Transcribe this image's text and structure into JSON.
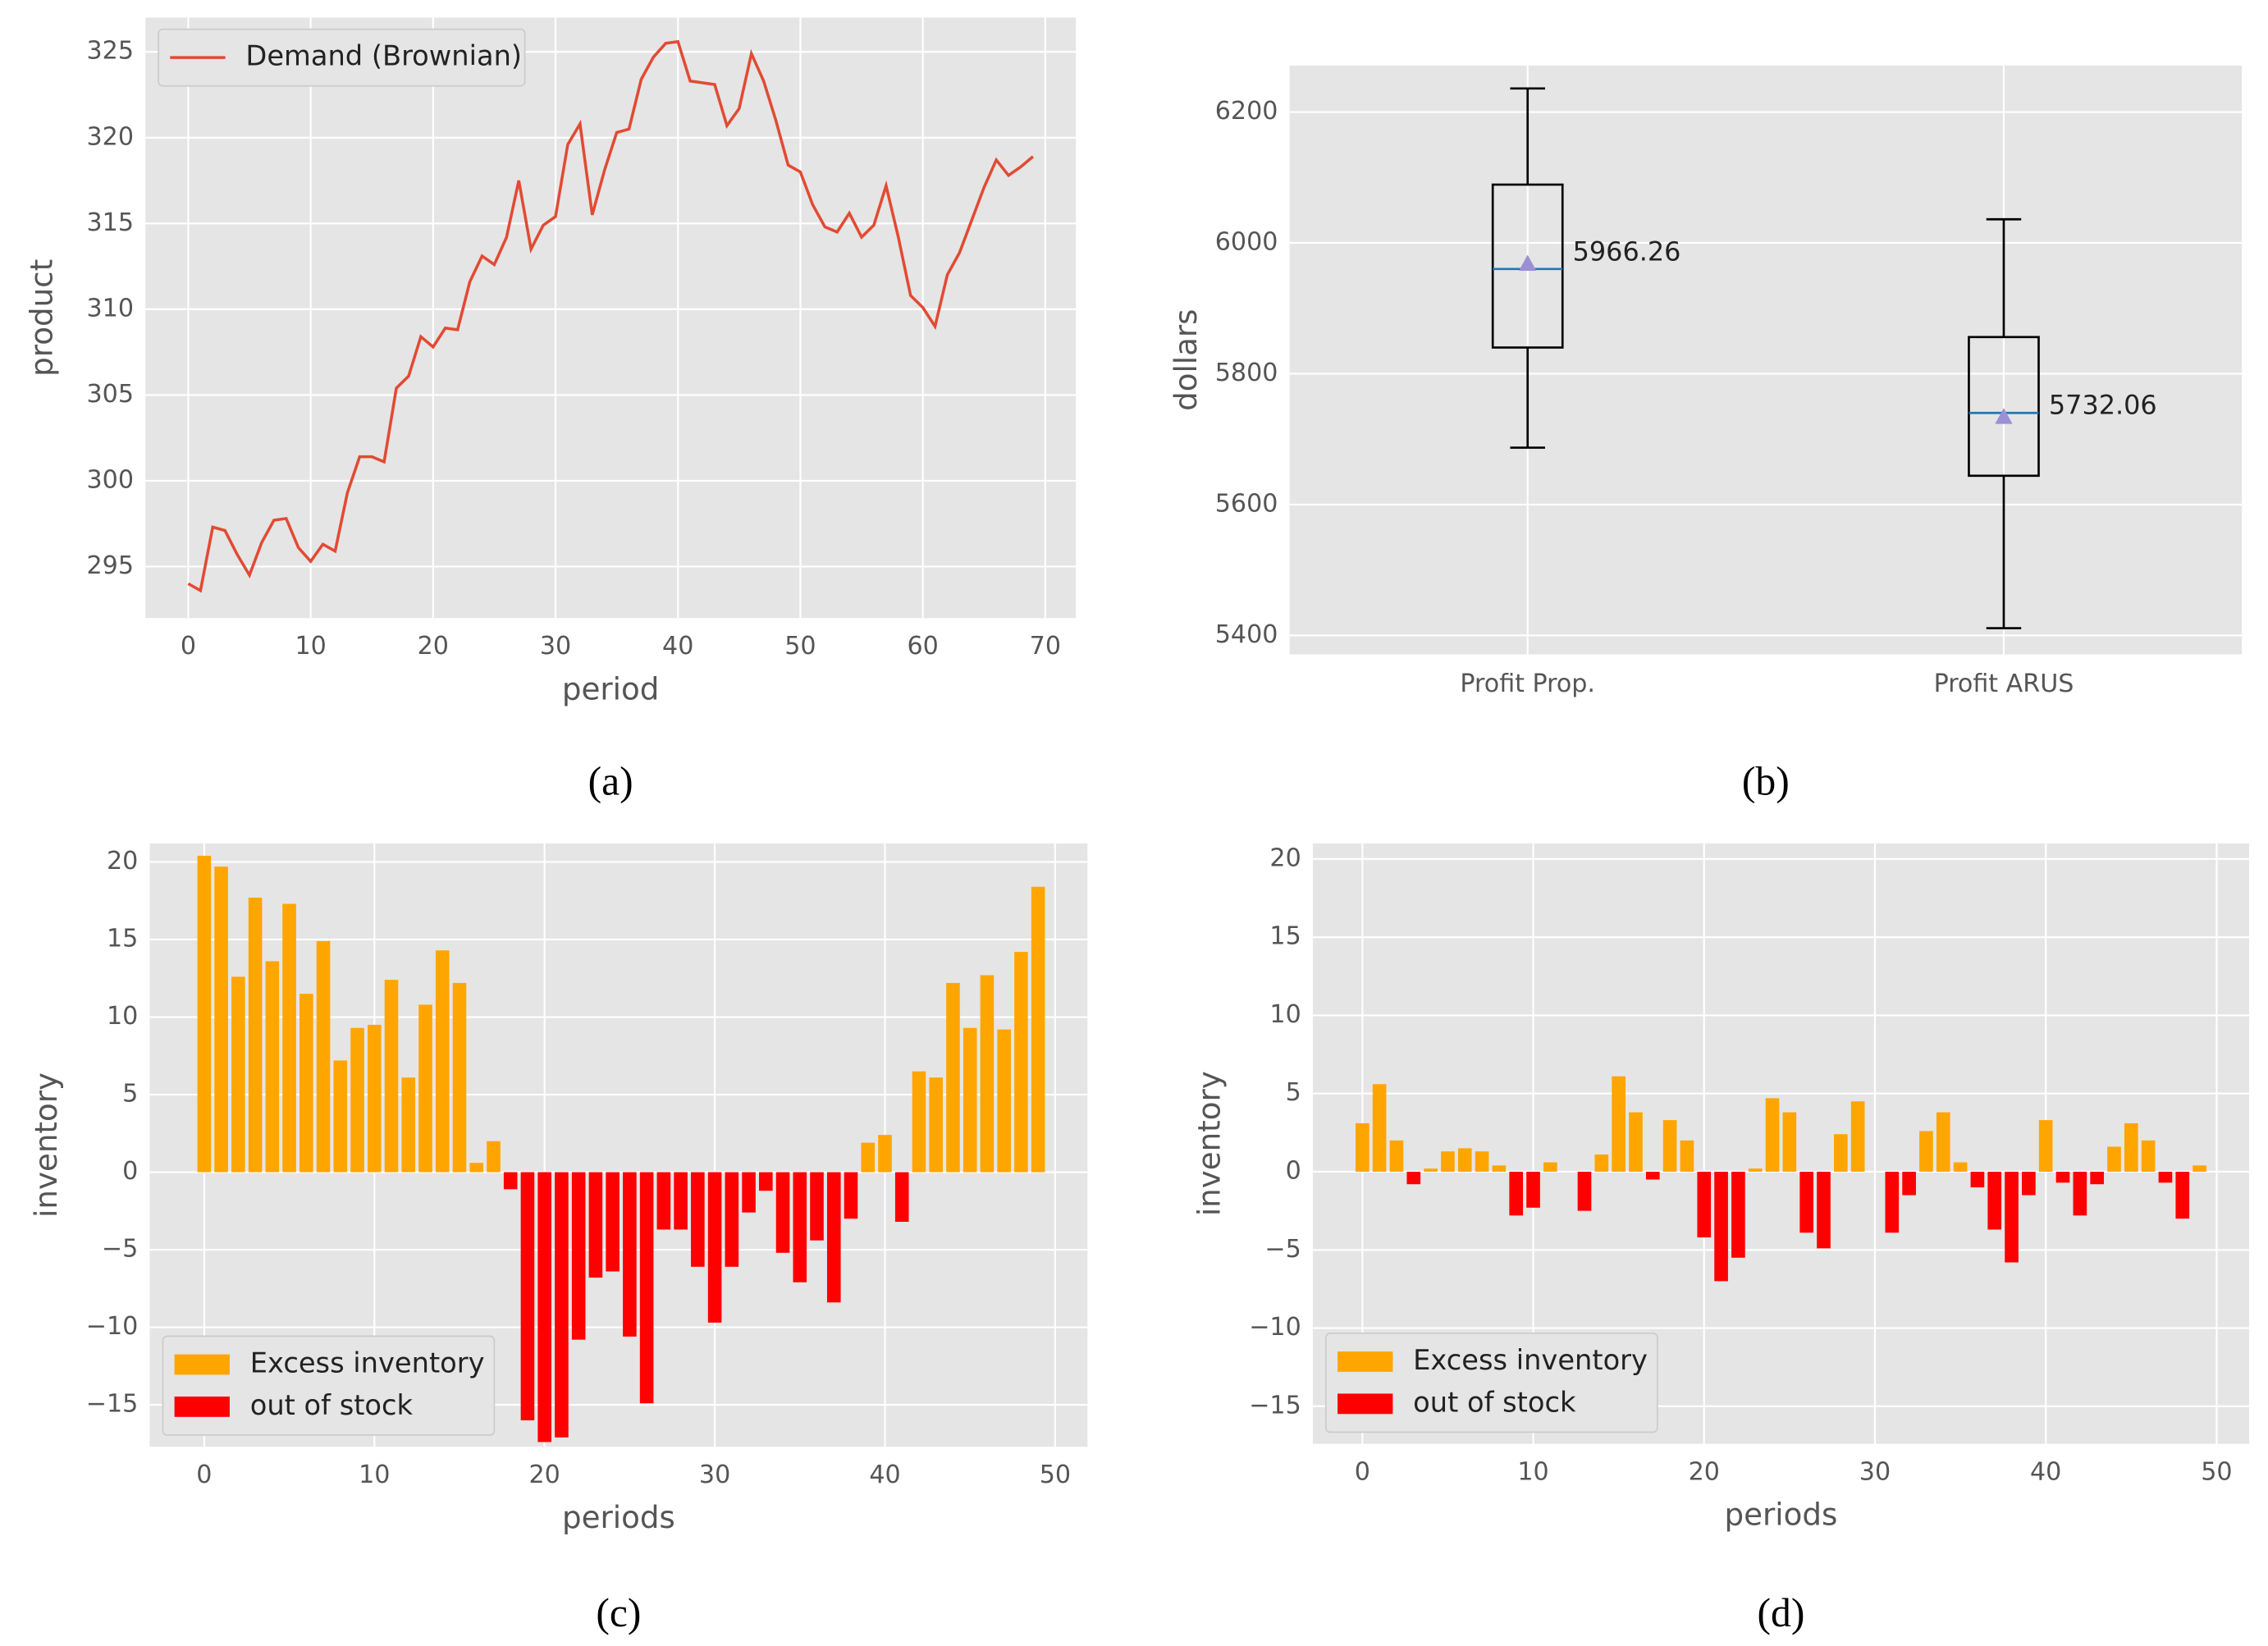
{
  "chart_data": [
    {
      "type": "line",
      "caption": "(a)",
      "xlabel": "period",
      "ylabel": "product",
      "legend": "upper left",
      "grid": true,
      "x": [
        0,
        1,
        2,
        3,
        4,
        5,
        6,
        7,
        8,
        9,
        10,
        11,
        12,
        13,
        14,
        15,
        16,
        17,
        18,
        19,
        20,
        21,
        22,
        23,
        24,
        25,
        26,
        27,
        28,
        29,
        30,
        31,
        32,
        33,
        34,
        35,
        36,
        37,
        38,
        39,
        40,
        41,
        42,
        43,
        44,
        45,
        46,
        47,
        48,
        49,
        50,
        51,
        52,
        53,
        54,
        55,
        56,
        57,
        58,
        59,
        60,
        61,
        62,
        63,
        64,
        65,
        66,
        67,
        68,
        69
      ],
      "series": [
        {
          "name": "Demand (Brownian)",
          "color": "#E24A33",
          "values": [
            294.0,
            293.6,
            297.3,
            297.1,
            295.7,
            294.5,
            296.4,
            297.7,
            297.8,
            296.1,
            295.3,
            296.3,
            295.9,
            299.3,
            301.4,
            301.4,
            301.1,
            305.4,
            306.1,
            308.4,
            307.8,
            308.9,
            308.8,
            311.6,
            313.1,
            312.6,
            314.2,
            317.5,
            313.5,
            314.9,
            315.4,
            319.6,
            320.8,
            315.5,
            318.1,
            320.3,
            320.5,
            323.4,
            324.7,
            325.5,
            325.6,
            323.3,
            323.2,
            323.1,
            320.7,
            321.7,
            324.9,
            323.3,
            321.0,
            318.4,
            318.0,
            316.1,
            314.8,
            314.5,
            315.6,
            314.2,
            314.9,
            317.2,
            314.2,
            310.8,
            310.1,
            309.0,
            312.0,
            313.3,
            315.2,
            317.1,
            318.7,
            317.8,
            318.3,
            318.9
          ]
        }
      ],
      "xlim": [
        -3.5,
        72.5
      ],
      "xticks": [
        0,
        10,
        20,
        30,
        40,
        50,
        60,
        70
      ],
      "ylim": [
        292,
        327
      ],
      "yticks": [
        295,
        300,
        305,
        310,
        315,
        320,
        325
      ]
    },
    {
      "type": "box",
      "caption": "(b)",
      "ylabel": "dollars",
      "grid": true,
      "categories": [
        "Profit Prop.",
        "Profit ARUS"
      ],
      "boxes": [
        {
          "whisker_low": 5687,
          "q1": 5840,
          "median": 5960,
          "q3": 6089,
          "whisker_high": 6236,
          "mean": 5966.26
        },
        {
          "whisker_low": 5411,
          "q1": 5644,
          "median": 5740,
          "q3": 5856,
          "whisker_high": 6036,
          "mean": 5732.06
        }
      ],
      "box_color": "#000000",
      "median_color": "#1f77b4",
      "mean_color": "#9b8fd6",
      "ylim": [
        5371,
        6271
      ],
      "yticks": [
        5400,
        5600,
        5800,
        6000,
        6200
      ]
    },
    {
      "type": "bar",
      "caption": "(c)",
      "xlabel": "periods",
      "ylabel": "inventory",
      "legend": "lower left",
      "grid": true,
      "x": [
        0,
        1,
        2,
        3,
        4,
        5,
        6,
        7,
        8,
        9,
        10,
        11,
        12,
        13,
        14,
        15,
        16,
        17,
        18,
        19,
        20,
        21,
        22,
        23,
        24,
        25,
        26,
        27,
        28,
        29,
        30,
        31,
        32,
        33,
        34,
        35,
        36,
        37,
        38,
        39,
        40,
        41,
        42,
        43,
        44,
        45,
        46,
        47,
        48,
        49
      ],
      "series": [
        {
          "name": "Excess inventory",
          "color": "#FFA500",
          "values": [
            20.4,
            19.7,
            12.6,
            17.7,
            13.6,
            17.3,
            11.5,
            14.9,
            7.2,
            9.3,
            9.5,
            12.4,
            6.1,
            10.8,
            14.3,
            12.2,
            0.6,
            2.0,
            null,
            null,
            null,
            null,
            null,
            null,
            null,
            null,
            null,
            null,
            null,
            null,
            null,
            null,
            null,
            null,
            null,
            null,
            null,
            null,
            null,
            1.9,
            2.4,
            null,
            6.5,
            6.1,
            12.2,
            9.3,
            12.7,
            9.2,
            14.2,
            18.4
          ]
        },
        {
          "name": "out of stock",
          "color": "#FF0000",
          "values": [
            null,
            null,
            null,
            null,
            null,
            null,
            null,
            null,
            null,
            null,
            null,
            null,
            null,
            null,
            null,
            null,
            null,
            null,
            -1.1,
            -16.0,
            -17.4,
            -17.1,
            -10.8,
            -6.8,
            -6.4,
            -10.6,
            -14.9,
            -3.7,
            -3.7,
            -6.1,
            -9.7,
            -6.1,
            -2.6,
            -1.2,
            -5.2,
            -7.1,
            -4.4,
            -8.4,
            -3.0,
            null,
            null,
            -3.2,
            null,
            null,
            null,
            null,
            null,
            null,
            null,
            null
          ]
        }
      ],
      "xlim": [
        -3.2,
        51.9
      ],
      "xticks": [
        0,
        10,
        20,
        30,
        40,
        50
      ],
      "ylim": [
        -17.7,
        21.2
      ],
      "yticks": [
        {
          "value": -15,
          "label": "−15"
        },
        {
          "value": -10,
          "label": "−10"
        },
        {
          "value": -5,
          "label": "−5"
        },
        0,
        5,
        10,
        15,
        20
      ]
    },
    {
      "type": "bar",
      "caption": "(d)",
      "xlabel": "periods",
      "ylabel": "inventory",
      "legend": "lower left",
      "grid": true,
      "x": [
        0,
        1,
        2,
        3,
        4,
        5,
        6,
        7,
        8,
        9,
        10,
        11,
        12,
        13,
        14,
        15,
        16,
        17,
        18,
        19,
        20,
        21,
        22,
        23,
        24,
        25,
        26,
        27,
        28,
        29,
        30,
        31,
        32,
        33,
        34,
        35,
        36,
        37,
        38,
        39,
        40,
        41,
        42,
        43,
        44,
        45,
        46,
        47,
        48,
        49
      ],
      "series": [
        {
          "name": "Excess inventory",
          "color": "#FFA500",
          "values": [
            3.1,
            5.6,
            2.0,
            null,
            0.2,
            1.3,
            1.5,
            1.3,
            0.4,
            null,
            null,
            0.6,
            0.0,
            null,
            1.1,
            6.1,
            3.8,
            null,
            3.3,
            2.0,
            null,
            null,
            null,
            0.2,
            4.7,
            3.8,
            null,
            null,
            2.4,
            4.5,
            0.0,
            null,
            null,
            2.6,
            3.8,
            0.6,
            null,
            null,
            null,
            null,
            3.3,
            null,
            null,
            null,
            1.6,
            3.1,
            2.0,
            null,
            null,
            0.4
          ]
        },
        {
          "name": "out of stock",
          "color": "#FF0000",
          "values": [
            null,
            null,
            null,
            -0.8,
            null,
            null,
            null,
            null,
            null,
            -2.8,
            -2.3,
            null,
            null,
            -2.5,
            null,
            null,
            null,
            -0.5,
            null,
            null,
            -4.2,
            -7.0,
            -5.5,
            null,
            null,
            null,
            -3.9,
            -4.9,
            null,
            null,
            null,
            -3.9,
            -1.5,
            null,
            null,
            null,
            -1.0,
            -3.7,
            -5.8,
            -1.5,
            null,
            -0.7,
            -2.8,
            -0.8,
            null,
            null,
            null,
            -0.7,
            -3.0,
            null
          ]
        }
      ],
      "xlim": [
        -2.9,
        51.9
      ],
      "xticks": [
        0,
        10,
        20,
        30,
        40,
        50
      ],
      "ylim": [
        -17.4,
        21.0
      ],
      "yticks": [
        {
          "value": -15,
          "label": "−15"
        },
        {
          "value": -10,
          "label": "−10"
        },
        {
          "value": -5,
          "label": "−5"
        },
        0,
        5,
        10,
        15,
        20
      ]
    }
  ]
}
